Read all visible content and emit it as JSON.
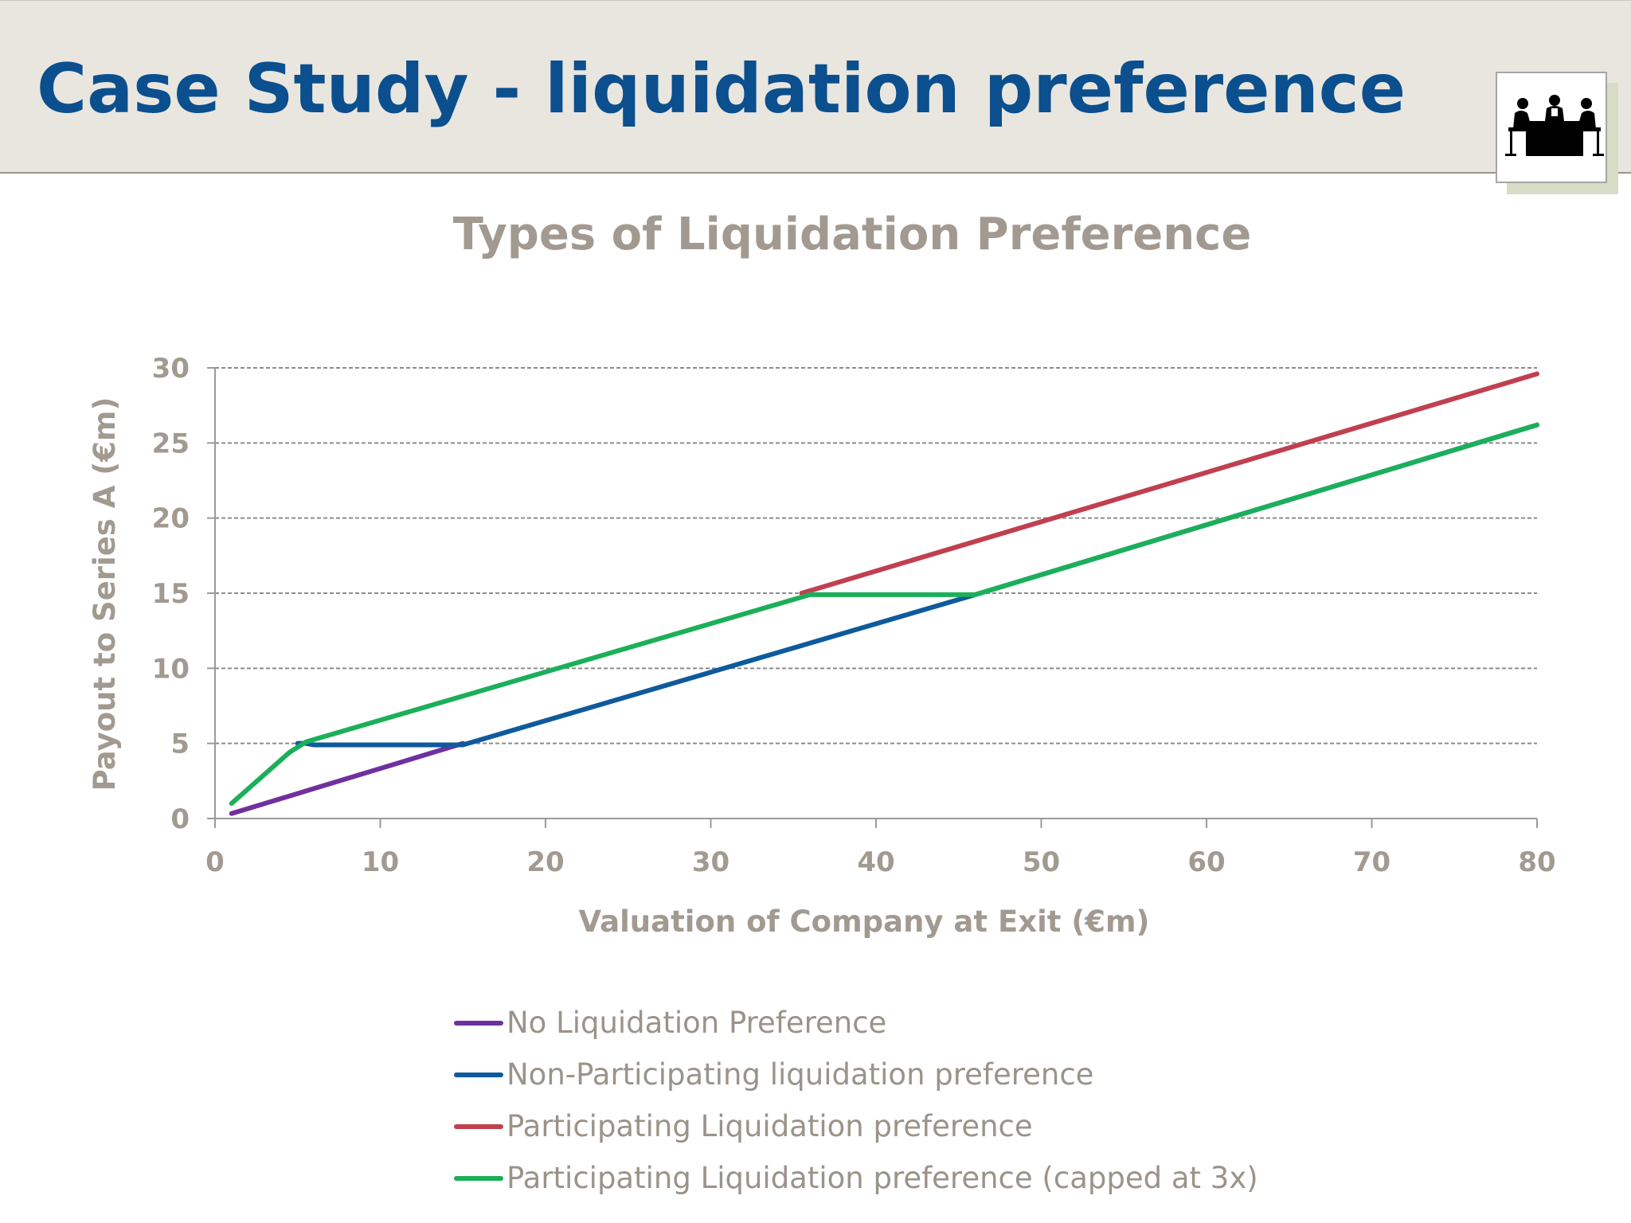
{
  "slide": {
    "title": "Case Study - liquidation preference",
    "logo_icon": "meeting-table-icon"
  },
  "chart_data": {
    "type": "line",
    "title": "Types of Liquidation Preference",
    "xlabel": "Valuation of Company at Exit (€m)",
    "ylabel": "Payout to Series A (€m)",
    "xlim": [
      0,
      80
    ],
    "ylim": [
      0,
      30
    ],
    "xticks": [
      0,
      10,
      20,
      30,
      40,
      50,
      60,
      70,
      80
    ],
    "yticks": [
      0,
      5,
      10,
      15,
      20,
      25,
      30
    ],
    "grid": "horizontal-dashed",
    "legend_position": "bottom",
    "series": [
      {
        "name": "No Liquidation Preference",
        "color": "#7030a0",
        "x": [
          1,
          15
        ],
        "y": [
          0.33,
          5
        ]
      },
      {
        "name": "Non-Participating liquidation preference",
        "color": "#0e5a9c",
        "x": [
          5,
          5.5,
          6,
          15,
          46,
          80
        ],
        "y": [
          5,
          5,
          4.9,
          4.9,
          14.9,
          26.2
        ]
      },
      {
        "name": "Participating Liquidation preference",
        "color": "#c0404f",
        "x": [
          35.5,
          80
        ],
        "y": [
          15,
          29.6
        ]
      },
      {
        "name": "Participating Liquidation preference (capped at 3x)",
        "color": "#1caf5a",
        "x": [
          1,
          4.5,
          5.5,
          36,
          46,
          80
        ],
        "y": [
          1,
          4.4,
          5.1,
          14.9,
          14.9,
          26.2
        ]
      }
    ]
  }
}
